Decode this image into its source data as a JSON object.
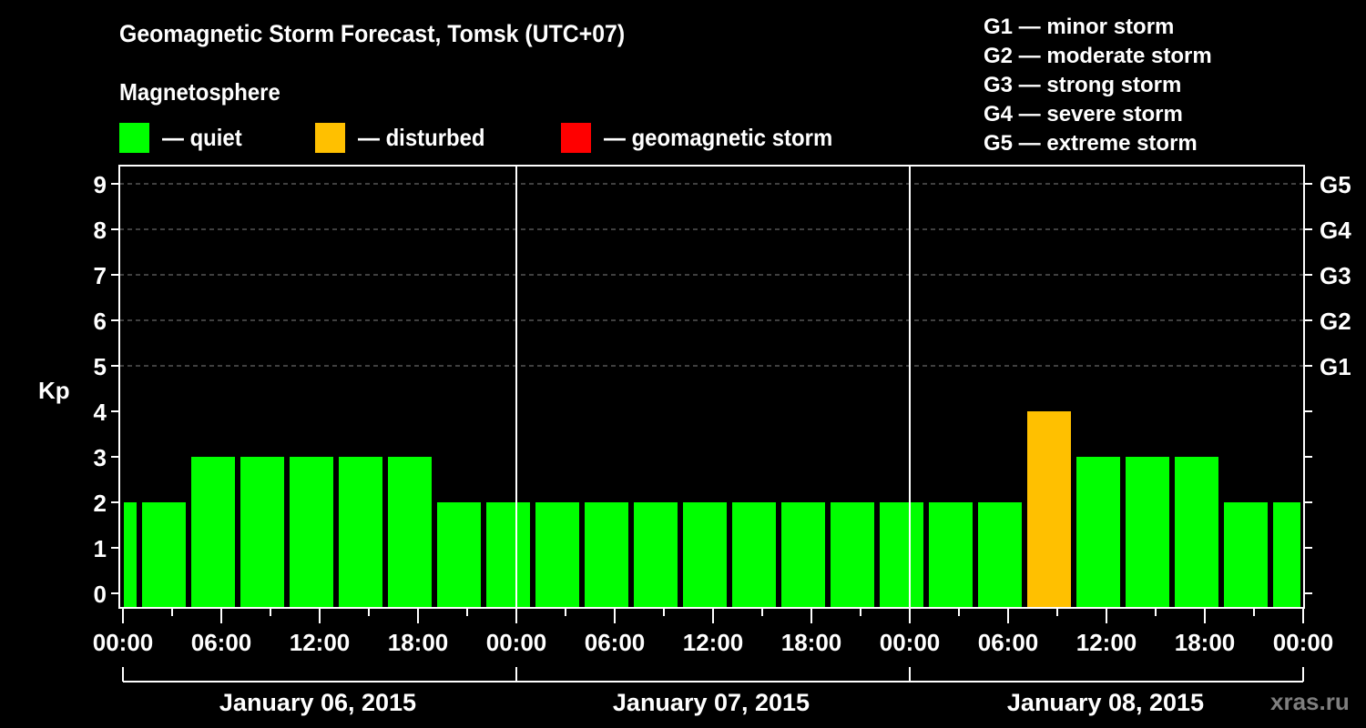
{
  "header": {
    "title": "Geomagnetic Storm Forecast, Tomsk (UTC+07)",
    "subtitle": "Magnetosphere"
  },
  "legend": [
    {
      "label": "— quiet",
      "color": "#00ff00"
    },
    {
      "label": "— disturbed",
      "color": "#ffc000"
    },
    {
      "label": "— geomagnetic storm",
      "color": "#ff0000"
    }
  ],
  "g_scale": [
    "G1 — minor storm",
    "G2 — moderate storm",
    "G3 — strong storm",
    "G4 — severe storm",
    "G5 — extreme storm"
  ],
  "watermark": "xras.ru",
  "colors": {
    "background": "#000000",
    "axis": "#ffffff",
    "grid": "#808080",
    "quiet": "#00ff00",
    "disturbed": "#ffc000",
    "storm": "#ff0000"
  },
  "chart_data": {
    "type": "bar",
    "title": "Geomagnetic Storm Forecast, Tomsk (UTC+07)",
    "xlabel": "",
    "ylabel": "Kp",
    "ylim": [
      0,
      9
    ],
    "y_ticks": [
      "0",
      "1",
      "2",
      "3",
      "4",
      "5",
      "6",
      "7",
      "8",
      "9"
    ],
    "y2_ticks": [
      {
        "kp": 5,
        "label": "G1"
      },
      {
        "kp": 6,
        "label": "G2"
      },
      {
        "kp": 7,
        "label": "G3"
      },
      {
        "kp": 8,
        "label": "G4"
      },
      {
        "kp": 9,
        "label": "G5"
      }
    ],
    "grid": {
      "horizontal_dashed_at": [
        5,
        6,
        7,
        8,
        9
      ]
    },
    "x_tick_labels": [
      "00:00",
      "06:00",
      "12:00",
      "18:00",
      "00:00",
      "06:00",
      "12:00",
      "18:00",
      "00:00",
      "06:00",
      "12:00",
      "18:00",
      "00:00"
    ],
    "day_labels": [
      "January 06, 2015",
      "January 07, 2015",
      "January 08, 2015"
    ],
    "bar_interval_hours": 3,
    "categories": [
      "Jan 06 ~00:00 (partial)",
      "Jan 06 01:00",
      "Jan 06 04:00",
      "Jan 06 07:00",
      "Jan 06 10:00",
      "Jan 06 13:00",
      "Jan 06 16:00",
      "Jan 06 19:00",
      "Jan 06 22:00",
      "Jan 07 01:00",
      "Jan 07 04:00",
      "Jan 07 07:00",
      "Jan 07 10:00",
      "Jan 07 13:00",
      "Jan 07 16:00",
      "Jan 07 19:00",
      "Jan 07 22:00",
      "Jan 08 01:00",
      "Jan 08 04:00",
      "Jan 08 07:00",
      "Jan 08 10:00",
      "Jan 08 13:00",
      "Jan 08 16:00",
      "Jan 08 19:00",
      "Jan 08 22:00 (partial)"
    ],
    "values": [
      2,
      2,
      3,
      3,
      3,
      3,
      3,
      2,
      2,
      2,
      2,
      2,
      2,
      2,
      2,
      2,
      2,
      2,
      2,
      4,
      3,
      3,
      3,
      2,
      2
    ],
    "levels": [
      "quiet",
      "quiet",
      "quiet",
      "quiet",
      "quiet",
      "quiet",
      "quiet",
      "quiet",
      "quiet",
      "quiet",
      "quiet",
      "quiet",
      "quiet",
      "quiet",
      "quiet",
      "quiet",
      "quiet",
      "quiet",
      "quiet",
      "disturbed",
      "quiet",
      "quiet",
      "quiet",
      "quiet",
      "quiet"
    ]
  }
}
